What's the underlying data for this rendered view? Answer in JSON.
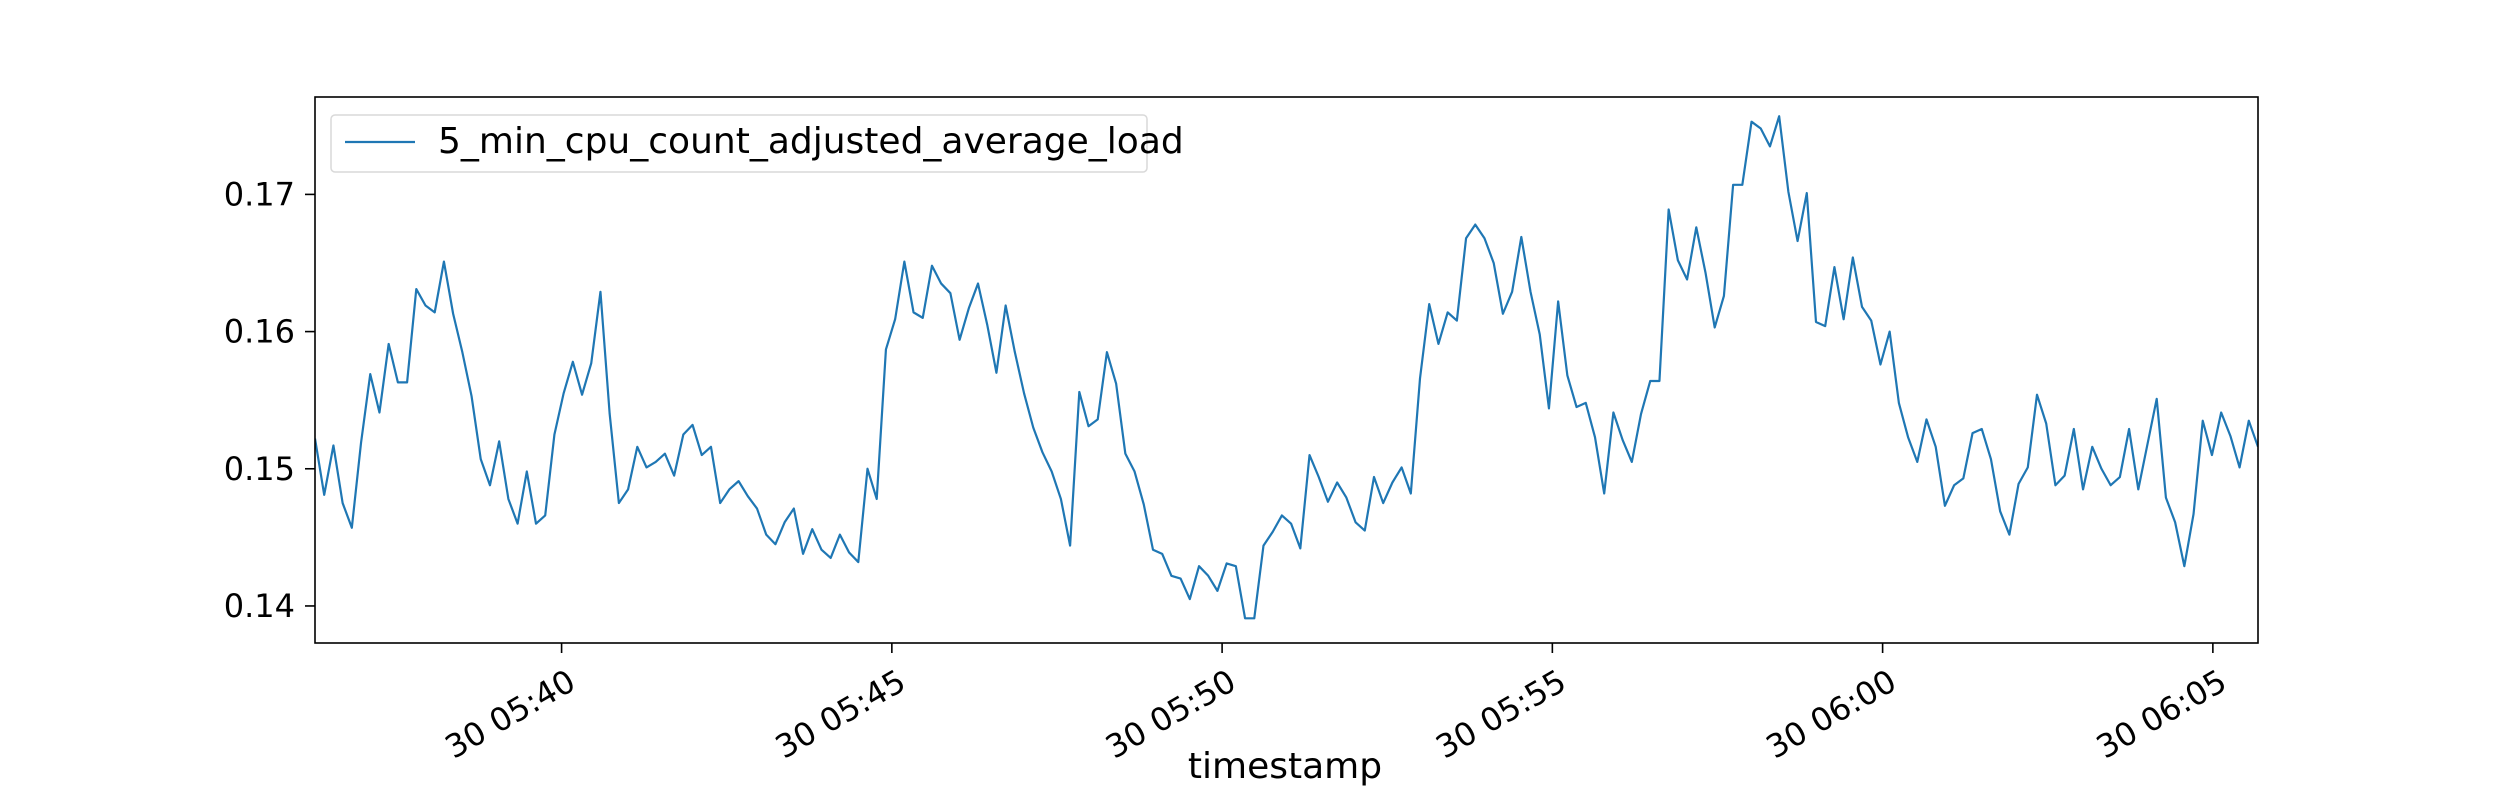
{
  "chart_data": {
    "type": "line",
    "title": "",
    "xlabel": "timestamp",
    "ylabel": "",
    "grid": false,
    "legend_position": "top-left",
    "x_axis": {
      "start": "30 05:36:16",
      "end": "30 06:05:41",
      "tick_labels": [
        "30 05:40",
        "30 05:45",
        "30 05:50",
        "30 05:55",
        "30 06:00",
        "30 06:05"
      ]
    },
    "y_axis": {
      "ylim": [
        0.1373,
        0.1771
      ],
      "tick_values": [
        0.14,
        0.15,
        0.16,
        0.17
      ],
      "tick_labels": [
        "0.14",
        "0.15",
        "0.16",
        "0.17"
      ]
    },
    "series": [
      {
        "name": "5_min_cpu_count_adjusted_average_load",
        "color": "#1f77b4",
        "x_labels": [
          "30 05:36:16",
          "30 05:40:01",
          "30 05:41:16",
          "30 05:45:01",
          "30 05:46:16",
          "30 05:47:31",
          "30 05:50:01",
          "30 05:51:16",
          "30 05:53:01",
          "30 05:55:01",
          "30 05:56:16",
          "30 05:58:01",
          "30 06:00:01",
          "30 06:01:16",
          "30 06:05:01",
          "30 06:05:41"
        ],
        "values": [
          0.1522,
          0.1488,
          0.1458,
          0.1464,
          0.1493,
          0.1471,
          0.1406,
          0.1391,
          0.1481,
          0.1458,
          0.1488,
          0.1458,
          0.1505,
          0.1548,
          0.1541,
          0.1512
        ],
        "points": [
          [
            0.1522,
            0.1481,
            0.1517,
            0.1475,
            0.1457,
            0.1519,
            0.1569,
            0.1541,
            0.1591,
            0.1563,
            0.1563,
            0.1631,
            0.1619,
            0.1614,
            0.1651,
            0.1613,
            0.1585,
            0.1553,
            0.1507,
            0.1488,
            0.152,
            0.1478,
            0.146,
            0.1498,
            0.146,
            0.1466,
            0.1525,
            0.1555,
            0.1578,
            0.1554,
            0.1577,
            0.1629,
            0.154,
            0.1475,
            0.1485,
            0.1516,
            0.1501,
            0.1505,
            0.1511,
            0.1495,
            0.1525,
            0.1532,
            0.151,
            0.1516,
            0.1475,
            0.1485,
            0.1491,
            0.148,
            0.1471,
            0.1452,
            0.1445,
            0.1461,
            0.1471,
            0.1438,
            0.1456,
            0.1441,
            0.1435,
            0.1452,
            0.1439,
            0.1432,
            0.15,
            0.1478,
            0.1587,
            0.1609,
            0.1651,
            0.1614,
            0.161,
            0.1648,
            0.1635,
            0.1628,
            0.1594,
            0.1617,
            0.1635,
            0.1605,
            0.157,
            0.1619,
            0.1585,
            0.1555,
            0.153,
            0.1512,
            0.1498,
            0.1478,
            0.1444,
            0.1556,
            0.1531,
            0.1536,
            0.1585,
            0.1562,
            0.1511,
            0.1498,
            0.1474,
            0.1441,
            0.1438,
            0.1422,
            0.142,
            0.1405,
            0.1429,
            0.1422,
            0.1411,
            0.1431,
            0.1429,
            0.1391,
            0.1391,
            0.1444,
            0.1454,
            0.1466,
            0.146,
            0.1442,
            0.151,
            0.1494,
            0.1476,
            0.149,
            0.1479,
            0.1461,
            0.1455,
            0.1494,
            0.1475,
            0.149,
            0.1501,
            0.1482,
            0.1566,
            0.162,
            0.1591,
            0.1614,
            0.1608,
            0.1668,
            0.1678,
            0.1668,
            0.165,
            0.1613,
            0.1629,
            0.1669,
            0.1629,
            0.1598,
            0.1544,
            0.1622,
            0.1568,
            0.1545,
            0.1548,
            0.1523,
            0.1482,
            0.1541,
            0.1521,
            0.1505,
            0.154,
            0.1564,
            0.1564,
            0.1689,
            0.1652,
            0.1638,
            0.1676,
            0.1643,
            0.1603,
            0.1626,
            0.1707,
            0.1707,
            0.1753,
            0.1748,
            0.1735,
            0.1757,
            0.1702,
            0.1666,
            0.1701,
            0.1607,
            0.1604,
            0.1647,
            0.1609,
            0.1654,
            0.1618,
            0.1608,
            0.1576,
            0.16,
            0.1548,
            0.1523,
            0.1505,
            0.1536,
            0.1516,
            0.1473,
            0.1488,
            0.1493,
            0.1526,
            0.1529,
            0.1507,
            0.1469,
            0.1452,
            0.1489,
            0.1501,
            0.1554,
            0.1533,
            0.1488,
            0.1495,
            0.1529,
            0.1485,
            0.1516,
            0.15,
            0.1488,
            0.1494,
            0.1529,
            0.1485,
            0.1518,
            0.1551,
            0.1479,
            0.1461,
            0.1429,
            0.1467,
            0.1535,
            0.151,
            0.1541,
            0.1524,
            0.1501,
            0.1535,
            0.1516
          ]
        ]
      }
    ]
  }
}
